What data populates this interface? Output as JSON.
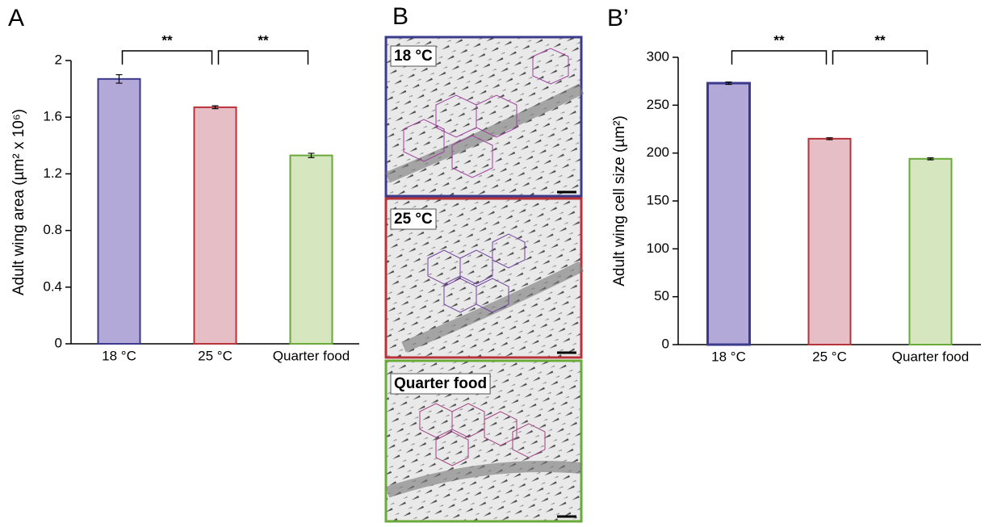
{
  "chart_data": [
    {
      "type": "bar",
      "panel_label": "A",
      "y_label": "Adult wing area (µm² x 10⁶)",
      "categories": [
        "18 °C",
        "25 °C",
        "Quarter food"
      ],
      "series": [
        {
          "values": [
            1.87,
            1.67,
            1.33
          ],
          "errors": [
            0.03,
            0.01,
            0.015
          ],
          "colors": [
            "#b3a9d9",
            "#e6bfc6",
            "#d6e6be"
          ],
          "edge_colors": [
            "#3b3a8c",
            "#b8323a",
            "#6aaa3a"
          ]
        }
      ],
      "significance": [
        "**",
        "**"
      ],
      "ylim": [
        0,
        2
      ],
      "yticks": [
        0,
        0.4,
        0.8,
        1.2,
        1.6,
        2
      ]
    },
    {
      "type": "bar",
      "panel_label": "B’",
      "y_label": "Adult wing cell size (µm²)",
      "categories": [
        "18 °C",
        "25 °C",
        "Quarter food"
      ],
      "series": [
        {
          "values": [
            273,
            215,
            194
          ],
          "errors": [
            1.2,
            1,
            1
          ],
          "colors": [
            "#b3a9d9",
            "#e6bfc6",
            "#d6e6be"
          ],
          "edge_colors": [
            "#3b3a8c",
            "#b8323a",
            "#6aaa3a"
          ]
        }
      ],
      "significance": [
        "**",
        "**"
      ],
      "ylim": [
        0,
        300
      ],
      "yticks": [
        0,
        50,
        100,
        150,
        200,
        250,
        300
      ]
    }
  ],
  "image_panel": {
    "panel_label": "B",
    "images": [
      "18 °C",
      "25 °C",
      "Quarter food"
    ]
  }
}
